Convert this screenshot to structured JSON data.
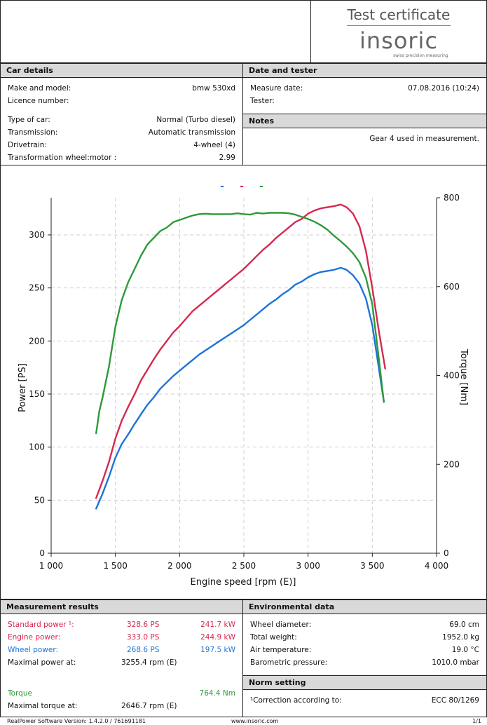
{
  "header": {
    "title": "Test certificate",
    "logo_text": "insoric",
    "logo_tagline": "swiss precision measuring"
  },
  "car_details": {
    "heading": "Car details",
    "rows": [
      {
        "label": "Make and model:",
        "value": "bmw 530xd"
      },
      {
        "label": "Licence number:",
        "value": ""
      },
      {
        "label": "Type of car:",
        "value": "Normal (Turbo diesel)"
      },
      {
        "label": "Transmission:",
        "value": "Automatic transmission"
      },
      {
        "label": "Drivetrain:",
        "value": "4-wheel (4)"
      },
      {
        "label": "Transformation wheel:motor :",
        "value": "2.99"
      }
    ]
  },
  "date_tester": {
    "heading": "Date and tester",
    "rows": [
      {
        "label": "Measure date:",
        "value": "07.08.2016 (10:24)"
      },
      {
        "label": "Tester:",
        "value": ""
      }
    ]
  },
  "notes": {
    "heading": "Notes",
    "text": "Gear 4 used in measurement."
  },
  "colors": {
    "wheel": "#1e73d8",
    "standard": "#d5294f",
    "torque": "#2e9a3a",
    "grid": "#cfcfcf"
  },
  "chart_data": {
    "type": "line",
    "legend_markers": [
      "-",
      "-",
      "-"
    ],
    "xlabel": "Engine speed [rpm (E)]",
    "ylabel": "Power [PS]",
    "y2label": "Torque [Nm]",
    "xlim": [
      1000,
      4000
    ],
    "ylim": [
      0,
      335
    ],
    "y2lim": [
      0,
      800
    ],
    "x_ticks": [
      1000,
      1500,
      2000,
      2500,
      3000,
      3500,
      4000
    ],
    "x_tick_labels": [
      "1 000",
      "1 500",
      "2 000",
      "2 500",
      "3 000",
      "3 500",
      "4 000"
    ],
    "y_ticks": [
      0,
      50,
      100,
      150,
      200,
      250,
      300
    ],
    "y2_ticks": [
      0,
      200,
      400,
      600,
      800
    ],
    "grid": true,
    "series": [
      {
        "key": "wheel",
        "axis": "left",
        "x": [
          1350,
          1400,
          1450,
          1500,
          1550,
          1600,
          1650,
          1700,
          1750,
          1800,
          1850,
          1900,
          1950,
          2000,
          2050,
          2100,
          2150,
          2200,
          2250,
          2300,
          2350,
          2400,
          2450,
          2500,
          2550,
          2600,
          2650,
          2700,
          2750,
          2800,
          2850,
          2900,
          2950,
          3000,
          3050,
          3100,
          3150,
          3200,
          3255,
          3300,
          3350,
          3400,
          3450,
          3500,
          3550,
          3590
        ],
        "y": [
          42,
          56,
          72,
          90,
          103,
          112,
          122,
          131,
          140,
          147,
          155,
          161,
          167,
          172,
          177,
          182,
          187,
          191,
          195,
          199,
          203,
          207,
          211,
          215,
          220,
          225,
          230,
          235,
          239,
          244,
          248,
          253,
          256,
          260,
          263,
          265,
          266,
          267,
          269,
          267,
          262,
          254,
          240,
          215,
          175,
          143
        ]
      },
      {
        "key": "standard",
        "axis": "left",
        "x": [
          1350,
          1400,
          1450,
          1500,
          1550,
          1600,
          1650,
          1700,
          1750,
          1800,
          1850,
          1900,
          1950,
          2000,
          2050,
          2100,
          2150,
          2200,
          2250,
          2300,
          2350,
          2400,
          2450,
          2500,
          2550,
          2600,
          2650,
          2700,
          2750,
          2800,
          2850,
          2900,
          2950,
          3000,
          3050,
          3100,
          3150,
          3200,
          3255,
          3300,
          3350,
          3400,
          3450,
          3500,
          3550,
          3600
        ],
        "y": [
          52,
          68,
          86,
          108,
          125,
          138,
          150,
          163,
          173,
          183,
          192,
          200,
          208,
          214,
          221,
          228,
          233,
          238,
          243,
          248,
          253,
          258,
          263,
          268,
          274,
          280,
          286,
          291,
          297,
          302,
          307,
          312,
          315,
          320,
          323,
          325,
          326,
          327,
          328.6,
          326,
          320,
          308,
          285,
          250,
          210,
          174
        ]
      },
      {
        "key": "torque",
        "axis": "right",
        "x": [
          1350,
          1375,
          1400,
          1450,
          1500,
          1550,
          1600,
          1650,
          1700,
          1750,
          1800,
          1850,
          1900,
          1950,
          2000,
          2050,
          2100,
          2150,
          2200,
          2250,
          2300,
          2350,
          2400,
          2450,
          2500,
          2550,
          2600,
          2647,
          2700,
          2750,
          2800,
          2850,
          2900,
          2950,
          3000,
          3050,
          3100,
          3150,
          3200,
          3250,
          3300,
          3350,
          3400,
          3450,
          3500,
          3550,
          3590
        ],
        "y": [
          270,
          320,
          350,
          420,
          510,
          570,
          610,
          640,
          670,
          695,
          710,
          725,
          733,
          745,
          750,
          755,
          760,
          763,
          764,
          763,
          763,
          763,
          763,
          765,
          763,
          762,
          766,
          764.4,
          766,
          766,
          766,
          765,
          762,
          757,
          752,
          746,
          738,
          728,
          715,
          703,
          690,
          675,
          655,
          620,
          560,
          440,
          340
        ]
      }
    ]
  },
  "measurement_results": {
    "heading": "Measurement results",
    "rows": [
      {
        "label": "Standard power ¹:",
        "ps": "328.6 PS",
        "kw": "241.7 kW",
        "tone": "red"
      },
      {
        "label": "Engine power:",
        "ps": "333.0 PS",
        "kw": "244.9 kW",
        "tone": "red"
      },
      {
        "label": "Wheel power:",
        "ps": "268.6 PS",
        "kw": "197.5 kW",
        "tone": "blue"
      }
    ],
    "max_power_label": "Maximal power at:",
    "max_power_value": "3255.4 rpm (E)",
    "torque_label": "Torque",
    "torque_value": "764.4 Nm",
    "max_torque_label": "Maximal torque at:",
    "max_torque_value": "2646.7 rpm (E)"
  },
  "environment": {
    "heading": "Environmental data",
    "rows": [
      {
        "label": "Wheel diameter:",
        "value": "69.0 cm"
      },
      {
        "label": "Total weight:",
        "value": "1952.0 kg"
      },
      {
        "label": "Air temperature:",
        "value": "19.0 °C"
      },
      {
        "label": "Barometric pressure:",
        "value": "1010.0 mbar"
      }
    ]
  },
  "norm": {
    "heading": "Norm setting",
    "label": "¹Correction according to:",
    "value": "ECC 80/1269"
  },
  "footer": {
    "software": "RealPower Software Version: 1.4.2.0 / 761691181",
    "website": "www.insoric.com",
    "page": "1/1"
  }
}
